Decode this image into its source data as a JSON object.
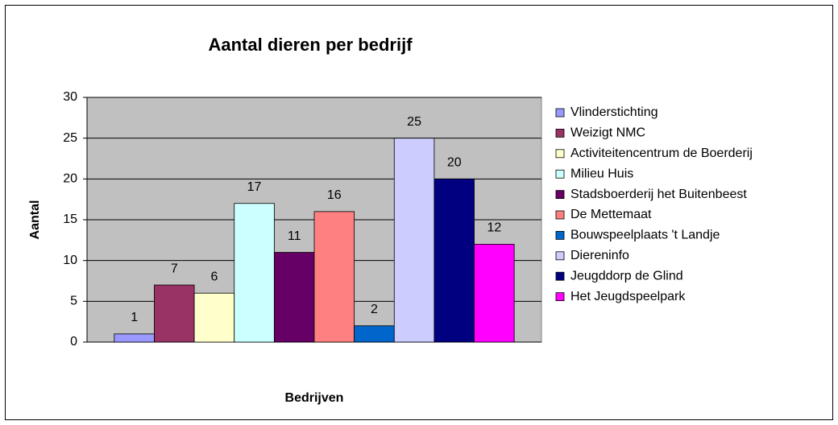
{
  "chart_data": {
    "type": "bar",
    "title": "Aantal dieren per bedrijf",
    "x_label": "Bedrijven",
    "y_label": "Aantal",
    "categories": [
      null
    ],
    "series": [
      {
        "name": "Vlinderstichting",
        "color": "#9999ff",
        "values": [
          1
        ]
      },
      {
        "name": "Weizigt NMC",
        "color": "#993366",
        "values": [
          7
        ]
      },
      {
        "name": "Activiteitencentrum de Boerderij",
        "color": "#ffffcc",
        "values": [
          6
        ]
      },
      {
        "name": "Milieu Huis",
        "color": "#ccffff",
        "values": [
          17
        ]
      },
      {
        "name": "Stadsboerderij het Buitenbeest",
        "color": "#660066",
        "values": [
          11
        ]
      },
      {
        "name": "De Mettemaat",
        "color": "#ff8080",
        "values": [
          16
        ]
      },
      {
        "name": "Bouwspeelplaats 't Landje",
        "color": "#0066cc",
        "values": [
          2
        ]
      },
      {
        "name": "Diereninfo",
        "color": "#ccccff",
        "values": [
          25
        ]
      },
      {
        "name": "Jeugddorp de Glind",
        "color": "#000080",
        "values": [
          20
        ]
      },
      {
        "name": "Het Jeugdspeelpark",
        "color": "#ff00ff",
        "values": [
          12
        ]
      }
    ],
    "ylim": [
      0,
      30
    ],
    "yticks": [
      0,
      5,
      10,
      15,
      20,
      25,
      30
    ],
    "grid": true,
    "legend": "right"
  }
}
